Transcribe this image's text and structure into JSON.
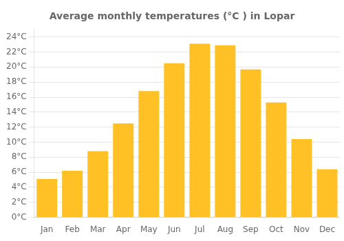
{
  "chart_data": {
    "type": "bar",
    "title": "Average monthly temperatures (°C ) in Lopar",
    "categories": [
      "Jan",
      "Feb",
      "Mar",
      "Apr",
      "May",
      "Jun",
      "Jul",
      "Aug",
      "Sep",
      "Oct",
      "Nov",
      "Dec"
    ],
    "values": [
      5.1,
      6.2,
      8.8,
      12.5,
      16.8,
      20.5,
      23.1,
      22.9,
      19.7,
      15.3,
      10.4,
      6.4
    ],
    "color": "#FFC125",
    "ylim": [
      0,
      25
    ],
    "yticks": [
      {
        "value": 0,
        "label": "0°C"
      },
      {
        "value": 2,
        "label": "2°C"
      },
      {
        "value": 4,
        "label": "4°C"
      },
      {
        "value": 6,
        "label": "6°C"
      },
      {
        "value": 8,
        "label": "8°C"
      },
      {
        "value": 10,
        "label": "10°C"
      },
      {
        "value": 12,
        "label": "12°C"
      },
      {
        "value": 14,
        "label": "14°C"
      },
      {
        "value": 16,
        "label": "16°C"
      },
      {
        "value": 18,
        "label": "18°C"
      },
      {
        "value": 20,
        "label": "20°C"
      },
      {
        "value": 22,
        "label": "22°C"
      },
      {
        "value": 24,
        "label": "24°C"
      }
    ],
    "grid": true
  }
}
